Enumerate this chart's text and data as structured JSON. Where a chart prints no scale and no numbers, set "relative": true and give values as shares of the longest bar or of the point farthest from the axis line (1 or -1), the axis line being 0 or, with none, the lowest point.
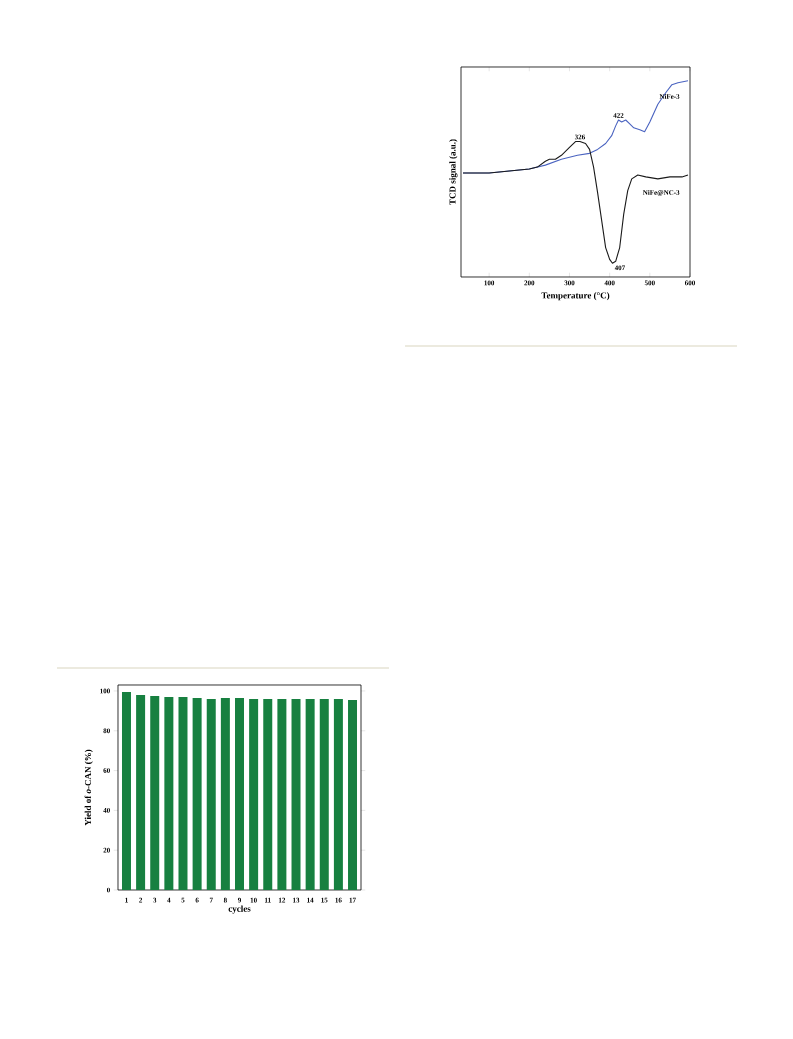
{
  "chart_data": [
    {
      "type": "line",
      "relative": true,
      "xlabel": "Temperature (°C)",
      "ylabel": "TCD signal (a.u.)",
      "xlim": [
        30,
        600
      ],
      "xticks": [
        100,
        200,
        300,
        400,
        500,
        600
      ],
      "tick_labels": "x",
      "series": [
        {
          "name": "NiFe-3",
          "color": "#4a63c0",
          "x": [
            35,
            100,
            150,
            200,
            240,
            280,
            320,
            350,
            370,
            390,
            405,
            415,
            422,
            430,
            440,
            450,
            460,
            475,
            487,
            500,
            520,
            540,
            555,
            570,
            595
          ],
          "values": [
            0.53,
            0.53,
            0.54,
            0.55,
            0.57,
            0.6,
            0.62,
            0.63,
            0.65,
            0.68,
            0.72,
            0.77,
            0.8,
            0.79,
            0.8,
            0.78,
            0.76,
            0.75,
            0.74,
            0.79,
            0.88,
            0.94,
            0.98,
            0.99,
            1.0
          ]
        },
        {
          "name": "NiFe@NC-3",
          "color": "#1a1a1a",
          "x": [
            35,
            100,
            150,
            200,
            220,
            240,
            250,
            265,
            280,
            300,
            315,
            326,
            340,
            350,
            360,
            370,
            380,
            390,
            400,
            407,
            415,
            425,
            435,
            445,
            455,
            470,
            490,
            520,
            550,
            580,
            595
          ],
          "values": [
            0.53,
            0.53,
            0.54,
            0.55,
            0.56,
            0.59,
            0.6,
            0.6,
            0.62,
            0.66,
            0.69,
            0.69,
            0.68,
            0.65,
            0.56,
            0.43,
            0.29,
            0.15,
            0.09,
            0.07,
            0.08,
            0.15,
            0.32,
            0.44,
            0.5,
            0.52,
            0.51,
            0.5,
            0.51,
            0.51,
            0.52
          ]
        }
      ],
      "annotations": [
        {
          "text": "326",
          "x": 326,
          "y": 0.69
        },
        {
          "text": "422",
          "x": 422,
          "y": 0.8
        },
        {
          "text": "407",
          "x": 407,
          "y": 0.07
        }
      ]
    },
    {
      "type": "bar",
      "xlabel": "cycles",
      "ylabel": "Yield of *o*-CAN (%)",
      "categories": [
        "1",
        "2",
        "3",
        "4",
        "5",
        "6",
        "7",
        "8",
        "9",
        "10",
        "11",
        "12",
        "13",
        "14",
        "15",
        "16",
        "17"
      ],
      "values": [
        99.5,
        98,
        97.5,
        97,
        97,
        96.5,
        96,
        96.5,
        96.5,
        96,
        96,
        96,
        96,
        96,
        96,
        96,
        95.5
      ],
      "color": "#178040",
      "ylim": [
        0,
        103
      ],
      "yticks": [
        0,
        20,
        40,
        60,
        80,
        100
      ]
    }
  ]
}
